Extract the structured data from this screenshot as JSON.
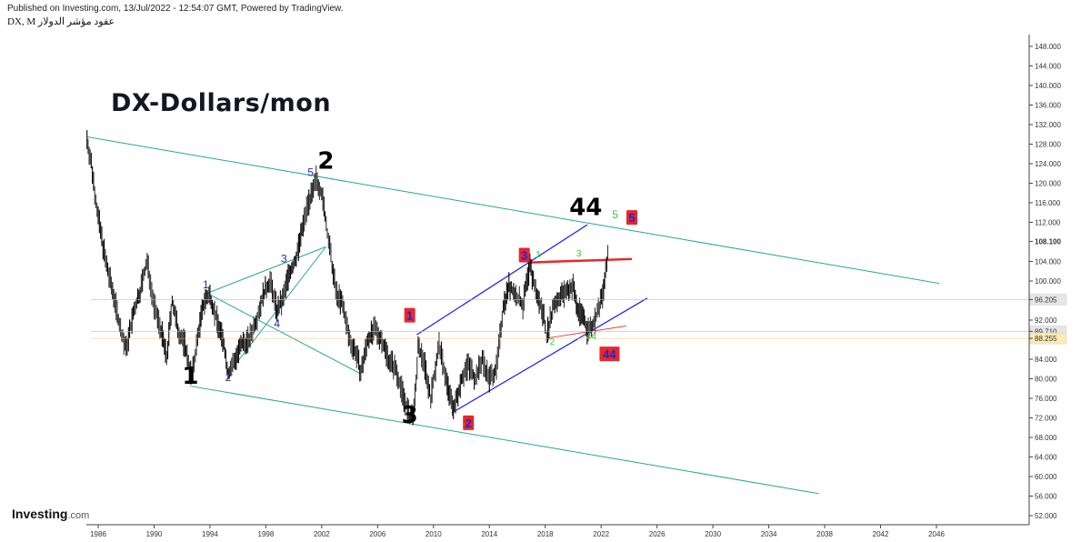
{
  "header": {
    "published": "Published on Investing.com, 13/Jul/2022 - 12:54:07 GMT, Powered by TradingView.",
    "symbol": "DX, M عقود مؤشر الدولار"
  },
  "brand": {
    "name": "Investing",
    "suffix": ".com"
  },
  "chart_data": {
    "type": "candlestick",
    "title": "DX-Dollars/mon",
    "x_ticks": [
      "1986",
      "1990",
      "1994",
      "1998",
      "2002",
      "2006",
      "2010",
      "2014",
      "2018",
      "2022",
      "2026",
      "2030",
      "2034",
      "2038",
      "2042",
      "2046"
    ],
    "y_ticks": [
      "148.000",
      "144.000",
      "140.000",
      "136.000",
      "132.000",
      "128.000",
      "124.000",
      "120.000",
      "116.000",
      "112.000",
      "108.100",
      "104.000",
      "100.000",
      "96.205",
      "92.000",
      "89.710",
      "88.255",
      "84.000",
      "80.000",
      "76.000",
      "72.000",
      "68.000",
      "64.000",
      "60.000",
      "56.000",
      "52.000"
    ],
    "xlim": [
      1985.5,
      2048.5
    ],
    "ylim": [
      50,
      150
    ],
    "grid": false,
    "price_labels": [
      {
        "text": "108.100",
        "value": 108.1,
        "style": "current"
      },
      {
        "text": "96.205",
        "value": 96.205,
        "style": "gray"
      },
      {
        "text": "89.710",
        "value": 89.71,
        "style": "gray"
      },
      {
        "text": "88.255",
        "value": 88.255,
        "style": "yellow"
      }
    ],
    "price_path": [
      [
        1985.2,
        129
      ],
      [
        1985.5,
        124
      ],
      [
        1986.0,
        113
      ],
      [
        1986.6,
        103
      ],
      [
        1987.2,
        96
      ],
      [
        1987.6,
        90
      ],
      [
        1988.0,
        86
      ],
      [
        1988.5,
        93
      ],
      [
        1989.0,
        98
      ],
      [
        1989.5,
        104
      ],
      [
        1990.0,
        95
      ],
      [
        1990.5,
        90
      ],
      [
        1990.9,
        84
      ],
      [
        1991.3,
        96
      ],
      [
        1991.7,
        90
      ],
      [
        1992.2,
        87
      ],
      [
        1992.7,
        80
      ],
      [
        1993.2,
        90
      ],
      [
        1993.6,
        96
      ],
      [
        1994.0,
        97
      ],
      [
        1994.5,
        92
      ],
      [
        1995.0,
        87
      ],
      [
        1995.3,
        81
      ],
      [
        1995.8,
        84
      ],
      [
        1996.3,
        87
      ],
      [
        1996.8,
        88
      ],
      [
        1997.3,
        92
      ],
      [
        1997.8,
        97
      ],
      [
        1998.3,
        100
      ],
      [
        1998.8,
        94
      ],
      [
        1999.2,
        96
      ],
      [
        1999.6,
        101
      ],
      [
        2000.1,
        104
      ],
      [
        2000.5,
        109
      ],
      [
        2001.0,
        116
      ],
      [
        2001.4,
        118
      ],
      [
        2001.6,
        121
      ],
      [
        2002.0,
        118
      ],
      [
        2002.4,
        110
      ],
      [
        2003.0,
        98
      ],
      [
        2003.5,
        95
      ],
      [
        2004.0,
        88
      ],
      [
        2004.5,
        85
      ],
      [
        2004.8,
        81
      ],
      [
        2005.3,
        88
      ],
      [
        2005.8,
        90
      ],
      [
        2006.3,
        88
      ],
      [
        2006.8,
        84
      ],
      [
        2007.3,
        82
      ],
      [
        2007.8,
        77
      ],
      [
        2008.3,
        72
      ],
      [
        2008.6,
        73
      ],
      [
        2008.9,
        86
      ],
      [
        2009.3,
        84
      ],
      [
        2009.8,
        76
      ],
      [
        2010.4,
        87
      ],
      [
        2010.9,
        80
      ],
      [
        2011.2,
        76
      ],
      [
        2011.5,
        74
      ],
      [
        2012.0,
        80
      ],
      [
        2012.5,
        83
      ],
      [
        2013.0,
        80
      ],
      [
        2013.5,
        84
      ],
      [
        2014.0,
        80
      ],
      [
        2014.5,
        82
      ],
      [
        2015.0,
        95
      ],
      [
        2015.4,
        99
      ],
      [
        2015.9,
        97
      ],
      [
        2016.4,
        95
      ],
      [
        2016.9,
        103
      ],
      [
        2017.4,
        97
      ],
      [
        2017.9,
        93
      ],
      [
        2018.1,
        89
      ],
      [
        2018.6,
        95
      ],
      [
        2019.1,
        97
      ],
      [
        2019.6,
        98
      ],
      [
        2020.0,
        99
      ],
      [
        2020.3,
        94
      ],
      [
        2020.7,
        93
      ],
      [
        2021.0,
        90
      ],
      [
        2021.4,
        91
      ],
      [
        2021.8,
        94
      ],
      [
        2022.1,
        97
      ],
      [
        2022.4,
        103
      ],
      [
        2022.55,
        108
      ]
    ],
    "trend_lines": [
      {
        "name": "upper-channel",
        "color": "#26a69a",
        "width": 1,
        "from": [
          1985.2,
          129.5
        ],
        "to": [
          2046.2,
          99.5
        ]
      },
      {
        "name": "lower-channel",
        "color": "#26a69a",
        "width": 1,
        "from": [
          1992.6,
          78.5
        ],
        "to": [
          2037.6,
          56.5
        ]
      },
      {
        "name": "wave2-to-3",
        "color": "#26a69a",
        "width": 1,
        "from": [
          1993.8,
          97.5
        ],
        "to": [
          2002.3,
          107
        ]
      },
      {
        "name": "wave2-to-3",
        "color": "#26a69a",
        "width": 1,
        "from": [
          1993.8,
          97.5
        ],
        "to": [
          2004.8,
          81
        ]
      },
      {
        "name": "wave1-to-4",
        "color": "#26a69a",
        "width": 1,
        "from": [
          1995.3,
          81
        ],
        "to": [
          2002.3,
          107
        ]
      },
      {
        "name": "upper-blue",
        "color": "#1a1aff",
        "width": 1.2,
        "from": [
          2008.8,
          89
        ],
        "to": [
          2021.0,
          111.5
        ]
      },
      {
        "name": "lower-blue",
        "color": "#1a1aff",
        "width": 1.2,
        "from": [
          2011.3,
          73
        ],
        "to": [
          2025.3,
          96.5
        ]
      },
      {
        "name": "red-resistance",
        "color": "#e8262b",
        "width": 2.5,
        "from": [
          2016.9,
          103.8
        ],
        "to": [
          2024.2,
          104.5
        ]
      },
      {
        "name": "red-support",
        "color": "#e8262b",
        "width": 0.8,
        "from": [
          2018.1,
          88.3
        ],
        "to": [
          2023.8,
          90.8
        ]
      }
    ],
    "labels": [
      {
        "text": "1",
        "x": 1992.6,
        "y": 79,
        "color": "#000000",
        "size": "large"
      },
      {
        "text": "2",
        "x": 2002.3,
        "y": 123,
        "color": "#000000",
        "size": "large"
      },
      {
        "text": "3",
        "x": 2008.3,
        "y": 71,
        "color": "#000000",
        "size": "large"
      },
      {
        "text": "44",
        "x": 2020.9,
        "y": 113.5,
        "color": "#000000",
        "size": "large"
      },
      {
        "text": "5",
        "x": 2001.2,
        "y": 121.5,
        "color": "#2a2aaa",
        "size": "small"
      },
      {
        "text": "1",
        "x": 1993.7,
        "y": 98.5,
        "color": "#2a2aaa",
        "size": "small"
      },
      {
        "text": "2",
        "x": 1995.3,
        "y": 79.5,
        "color": "#2a2aaa",
        "size": "small"
      },
      {
        "text": "3",
        "x": 1999.3,
        "y": 103.8,
        "color": "#2a2aaa",
        "size": "small"
      },
      {
        "text": "4",
        "x": 1998.8,
        "y": 90.5,
        "color": "#2a2aaa",
        "size": "small"
      },
      {
        "text": "1",
        "x": 2017.5,
        "y": 104.8,
        "color": "#2ecc40",
        "size": "tiny"
      },
      {
        "text": "3",
        "x": 2020.4,
        "y": 105,
        "color": "#2ecc40",
        "size": "tiny"
      },
      {
        "text": "2",
        "x": 2018.5,
        "y": 87,
        "color": "#2ecc40",
        "size": "tiny"
      },
      {
        "text": "44",
        "x": 2021.3,
        "y": 88.1,
        "color": "#2ecc40",
        "size": "tiny"
      },
      {
        "text": "5",
        "x": 2023.0,
        "y": 112.8,
        "color": "#2ecc40",
        "size": "small"
      }
    ],
    "boxes": [
      {
        "text": "1",
        "x": 2008.3,
        "y": 93,
        "w": 12
      },
      {
        "text": "2",
        "x": 2012.5,
        "y": 71,
        "w": 12
      },
      {
        "text": "3",
        "x": 2016.5,
        "y": 105.3,
        "w": 12
      },
      {
        "text": "5",
        "x": 2024.2,
        "y": 113,
        "w": 12
      },
      {
        "text": "44",
        "x": 2022.6,
        "y": 85.1,
        "w": 22
      }
    ]
  }
}
